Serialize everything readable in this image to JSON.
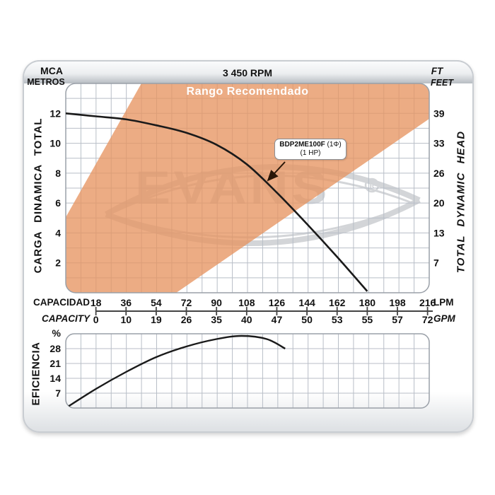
{
  "header": {
    "left_unit_line1": "MCA",
    "left_unit_line2": "METROS",
    "rpm": "3 450 RPM",
    "right_unit_line1": "FT",
    "right_unit_line2": "FEET"
  },
  "main_chart": {
    "recommended_range_label": "Rango Recomendado",
    "y_left_axis_label": "CARGA DINAMICA TOTAL",
    "y_right_axis_label": "TOTAL DYNAMIC HEAD",
    "pump_model": "BDP2ME100F",
    "pump_phase": " (1Φ)",
    "pump_power": "(1 HP)"
  },
  "x_axis": {
    "label_row1": "CAPACIDAD",
    "label_row2": "CAPACITY",
    "unit_row1": "LPM",
    "unit_row2": "GPM"
  },
  "efficiency_chart": {
    "axis_label": "EFICIENCIA",
    "unit_label": "%"
  },
  "watermark": {
    "text": "EVANS",
    "registered": "R"
  },
  "colors": {
    "recommended_range_orange": "#E79561",
    "recommended_range_opacity": 0.78,
    "grid_line": "#b8bec7",
    "plot_border": "#9aa0a8",
    "watermark_gray": "#d3d5d8",
    "curve_black": "#1a1a1a",
    "axis_line": "#444444",
    "arrow_brown": "#2a1708"
  },
  "chart_data": [
    {
      "type": "line",
      "name": "head-capacity-curve",
      "title": "3 450 RPM",
      "xlabel": "CAPACIDAD / CAPACITY",
      "ylabel_left": "CARGA DINAMICA TOTAL (MCA METROS)",
      "ylabel_right": "TOTAL DYNAMIC HEAD (FT FEET)",
      "x_lpm": [
        0,
        18,
        36,
        54,
        72,
        90,
        108,
        126,
        144,
        162,
        180
      ],
      "y_metros": [
        12,
        11.8,
        11.6,
        11.2,
        10.7,
        9.9,
        8.6,
        6.7,
        4.6,
        2.4,
        0.1
      ],
      "xlim_lpm": [
        0,
        217
      ],
      "ylim_metros": [
        0,
        14
      ],
      "x_ticks_lpm": [
        "18",
        "36",
        "54",
        "72",
        "90",
        "108",
        "126",
        "144",
        "162",
        "180",
        "198",
        "216"
      ],
      "x_ticks_gpm": [
        "0",
        "10",
        "19",
        "26",
        "35",
        "40",
        "47",
        "50",
        "53",
        "55",
        "57",
        "72"
      ],
      "y_ticks_left_metros": [
        "12",
        "10",
        "8",
        "6",
        "4",
        "2"
      ],
      "y_ticks_right_feet": [
        "39",
        "33",
        "26",
        "20",
        "13",
        "7"
      ],
      "grid": true,
      "recommended_range_polygon_pct": [
        [
          0,
          63.9
        ],
        [
          20.8,
          0
        ],
        [
          100,
          0
        ],
        [
          100,
          16.9
        ],
        [
          30.4,
          100
        ],
        [
          0,
          100
        ]
      ]
    },
    {
      "type": "line",
      "name": "efficiency-curve",
      "ylabel": "EFICIENCIA %",
      "x_lpm": [
        0,
        18,
        36,
        54,
        72,
        90,
        105,
        120,
        131
      ],
      "y_pct": [
        0,
        9,
        17,
        24,
        29,
        32.5,
        34,
        32.5,
        28
      ],
      "ylim_pct": [
        0,
        35
      ],
      "y_ticks_pct": [
        "28",
        "21",
        "14",
        "7"
      ],
      "grid": true
    }
  ]
}
